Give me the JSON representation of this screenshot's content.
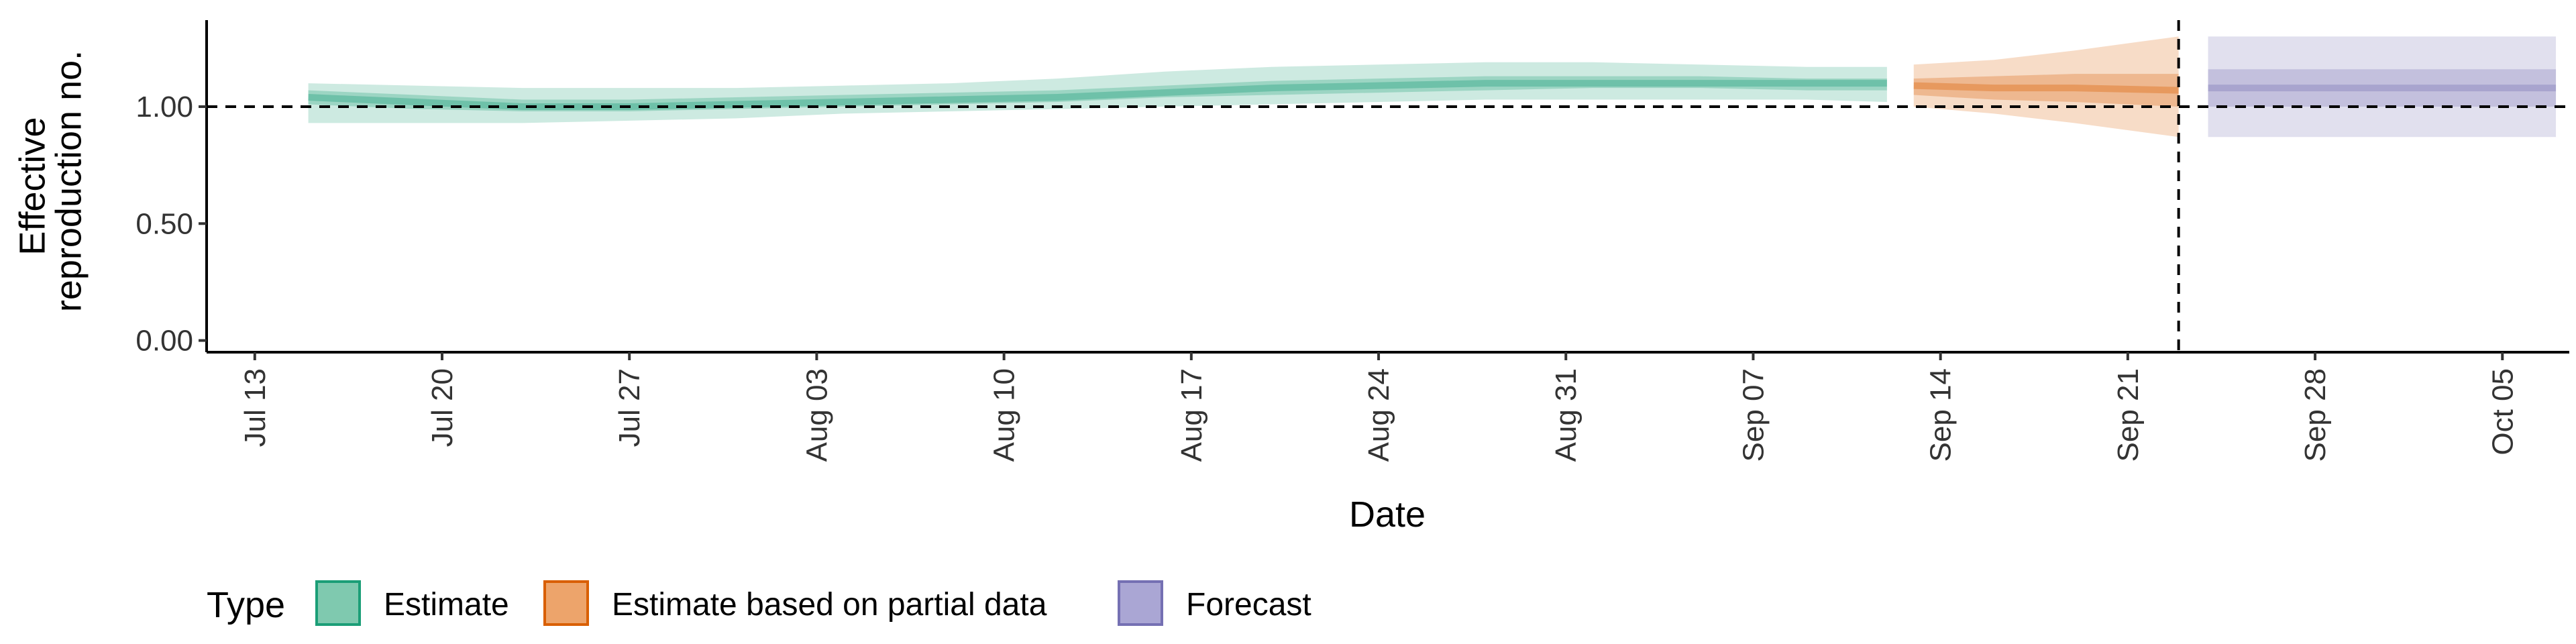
{
  "chart_data": {
    "type": "area",
    "xlabel": "Date",
    "ylabel_lines": [
      "Effective",
      "reproduction no."
    ],
    "ylim": [
      -0.05,
      1.37
    ],
    "y_ticks": [
      0.0,
      0.5,
      1.0
    ],
    "y_tick_labels": [
      "0.00",
      "0.50",
      "1.00"
    ],
    "xlim": [
      -1.8,
      86.5
    ],
    "x_ticks": [
      0,
      7,
      14,
      21,
      28,
      35,
      42,
      49,
      56,
      63,
      70,
      77,
      84
    ],
    "x_tick_labels": [
      "Jul 13",
      "Jul 20",
      "Jul 27",
      "Aug 03",
      "Aug 10",
      "Aug 17",
      "Aug 24",
      "Aug 31",
      "Sep 07",
      "Sep 14",
      "Sep 21",
      "Sep 28",
      "Oct 05"
    ],
    "reference_line_y": 1.0,
    "forecast_start_x": 71.9,
    "legend_title": "Type",
    "legend": [
      {
        "label": "Estimate",
        "fill": "#7fc9af",
        "stroke": "#1b9e77"
      },
      {
        "label": "Estimate based on partial data",
        "fill": "#eda46b",
        "stroke": "#d95f02"
      },
      {
        "label": "Forecast",
        "fill": "#aaa6d4",
        "stroke": "#7570b3"
      }
    ],
    "series": [
      {
        "name": "Estimate",
        "color": "#1b9e77",
        "x": [
          2,
          6,
          10,
          14,
          18,
          22,
          26,
          30,
          34,
          38,
          42,
          46,
          50,
          54,
          58,
          61
        ],
        "median": [
          1.04,
          1.02,
          1.0,
          1.0,
          1.01,
          1.02,
          1.03,
          1.04,
          1.06,
          1.08,
          1.09,
          1.1,
          1.1,
          1.1,
          1.1,
          1.1
        ],
        "lower90": [
          0.93,
          0.93,
          0.93,
          0.94,
          0.95,
          0.97,
          0.98,
          0.99,
          1.0,
          1.01,
          1.02,
          1.03,
          1.03,
          1.03,
          1.03,
          1.02
        ],
        "upper90": [
          1.1,
          1.09,
          1.08,
          1.08,
          1.08,
          1.09,
          1.1,
          1.12,
          1.15,
          1.17,
          1.18,
          1.19,
          1.19,
          1.18,
          1.17,
          1.17
        ],
        "lower50": [
          1.01,
          0.99,
          0.98,
          0.98,
          0.99,
          1.0,
          1.01,
          1.02,
          1.04,
          1.05,
          1.06,
          1.07,
          1.08,
          1.08,
          1.07,
          1.07
        ],
        "upper50": [
          1.07,
          1.05,
          1.03,
          1.03,
          1.04,
          1.05,
          1.06,
          1.07,
          1.09,
          1.11,
          1.12,
          1.13,
          1.13,
          1.13,
          1.12,
          1.12
        ]
      },
      {
        "name": "Estimate based on partial data",
        "color": "#d95f02",
        "x": [
          62,
          65,
          68,
          71.9
        ],
        "median": [
          1.09,
          1.08,
          1.08,
          1.07
        ],
        "lower90": [
          1.0,
          0.97,
          0.93,
          0.87
        ],
        "upper90": [
          1.18,
          1.2,
          1.24,
          1.3
        ],
        "lower50": [
          1.05,
          1.03,
          1.02,
          1.0
        ],
        "upper50": [
          1.12,
          1.13,
          1.14,
          1.14
        ]
      },
      {
        "name": "Forecast",
        "color": "#7570b3",
        "x": [
          73,
          86
        ],
        "median": [
          1.08,
          1.08
        ],
        "lower90": [
          0.87,
          0.87
        ],
        "upper90": [
          1.3,
          1.3
        ],
        "lower50": [
          1.0,
          1.0
        ],
        "upper50": [
          1.16,
          1.16
        ]
      }
    ]
  }
}
